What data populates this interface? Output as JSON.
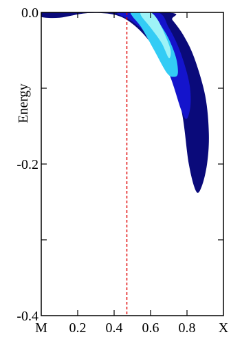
{
  "chart_data": {
    "type": "contour",
    "title": "",
    "xlabel": "",
    "ylabel": "Energy",
    "xlim": [
      0,
      1
    ],
    "ylim": [
      -0.4,
      0
    ],
    "x_ticks": [
      {
        "value": 0.0,
        "label": "M"
      },
      {
        "value": 0.2,
        "label": "0.2"
      },
      {
        "value": 0.4,
        "label": "0.4"
      },
      {
        "value": 0.6,
        "label": "0.6"
      },
      {
        "value": 0.8,
        "label": "0.8"
      },
      {
        "value": 1.0,
        "label": "X"
      }
    ],
    "y_ticks": [
      {
        "value": 0.0,
        "label": "0.0"
      },
      {
        "value": -0.1,
        "label": ""
      },
      {
        "value": -0.2,
        "label": "-0.2"
      },
      {
        "value": -0.3,
        "label": ""
      },
      {
        "value": -0.4,
        "label": "-0.4"
      }
    ],
    "vertical_line": {
      "x": 0.47,
      "color": "#e00000",
      "style": "dashed"
    },
    "contour_levels": [
      {
        "level": 1,
        "color": "#0a0a7a",
        "polygon": [
          [
            0.0,
            -0.006
          ],
          [
            0.1,
            -0.007
          ],
          [
            0.25,
            -0.001
          ],
          [
            0.4,
            -0.003
          ],
          [
            0.5,
            -0.015
          ],
          [
            0.6,
            -0.04
          ],
          [
            0.7,
            -0.08
          ],
          [
            0.77,
            -0.13
          ],
          [
            0.81,
            -0.2
          ],
          [
            0.85,
            -0.236
          ],
          [
            0.88,
            -0.23
          ],
          [
            0.91,
            -0.2
          ],
          [
            0.92,
            -0.16
          ],
          [
            0.9,
            -0.11
          ],
          [
            0.84,
            -0.06
          ],
          [
            0.78,
            -0.03
          ],
          [
            0.72,
            -0.01
          ],
          [
            0.68,
            0.0
          ],
          [
            0.0,
            0.0
          ]
        ]
      },
      {
        "level": 2,
        "color": "#1414cc",
        "polygon": [
          [
            0.42,
            -0.002
          ],
          [
            0.5,
            -0.012
          ],
          [
            0.6,
            -0.035
          ],
          [
            0.7,
            -0.08
          ],
          [
            0.77,
            -0.13
          ],
          [
            0.8,
            -0.14
          ],
          [
            0.82,
            -0.12
          ],
          [
            0.81,
            -0.09
          ],
          [
            0.76,
            -0.05
          ],
          [
            0.7,
            -0.02
          ],
          [
            0.64,
            0.0
          ],
          [
            0.45,
            0.0
          ]
        ]
      },
      {
        "level": 3,
        "color": "#33ccf5",
        "polygon": [
          [
            0.5,
            -0.005
          ],
          [
            0.55,
            -0.02
          ],
          [
            0.62,
            -0.05
          ],
          [
            0.69,
            -0.08
          ],
          [
            0.73,
            -0.085
          ],
          [
            0.75,
            -0.08
          ],
          [
            0.74,
            -0.06
          ],
          [
            0.7,
            -0.035
          ],
          [
            0.65,
            -0.015
          ],
          [
            0.6,
            0.0
          ],
          [
            0.5,
            0.0
          ]
        ]
      },
      {
        "level": 4,
        "color": "#9ef3f7",
        "polygon": [
          [
            0.55,
            -0.005
          ],
          [
            0.6,
            -0.02
          ],
          [
            0.66,
            -0.04
          ],
          [
            0.7,
            -0.06
          ],
          [
            0.71,
            -0.05
          ],
          [
            0.68,
            -0.03
          ],
          [
            0.64,
            -0.01
          ],
          [
            0.6,
            0.0
          ],
          [
            0.55,
            0.0
          ]
        ]
      }
    ]
  }
}
